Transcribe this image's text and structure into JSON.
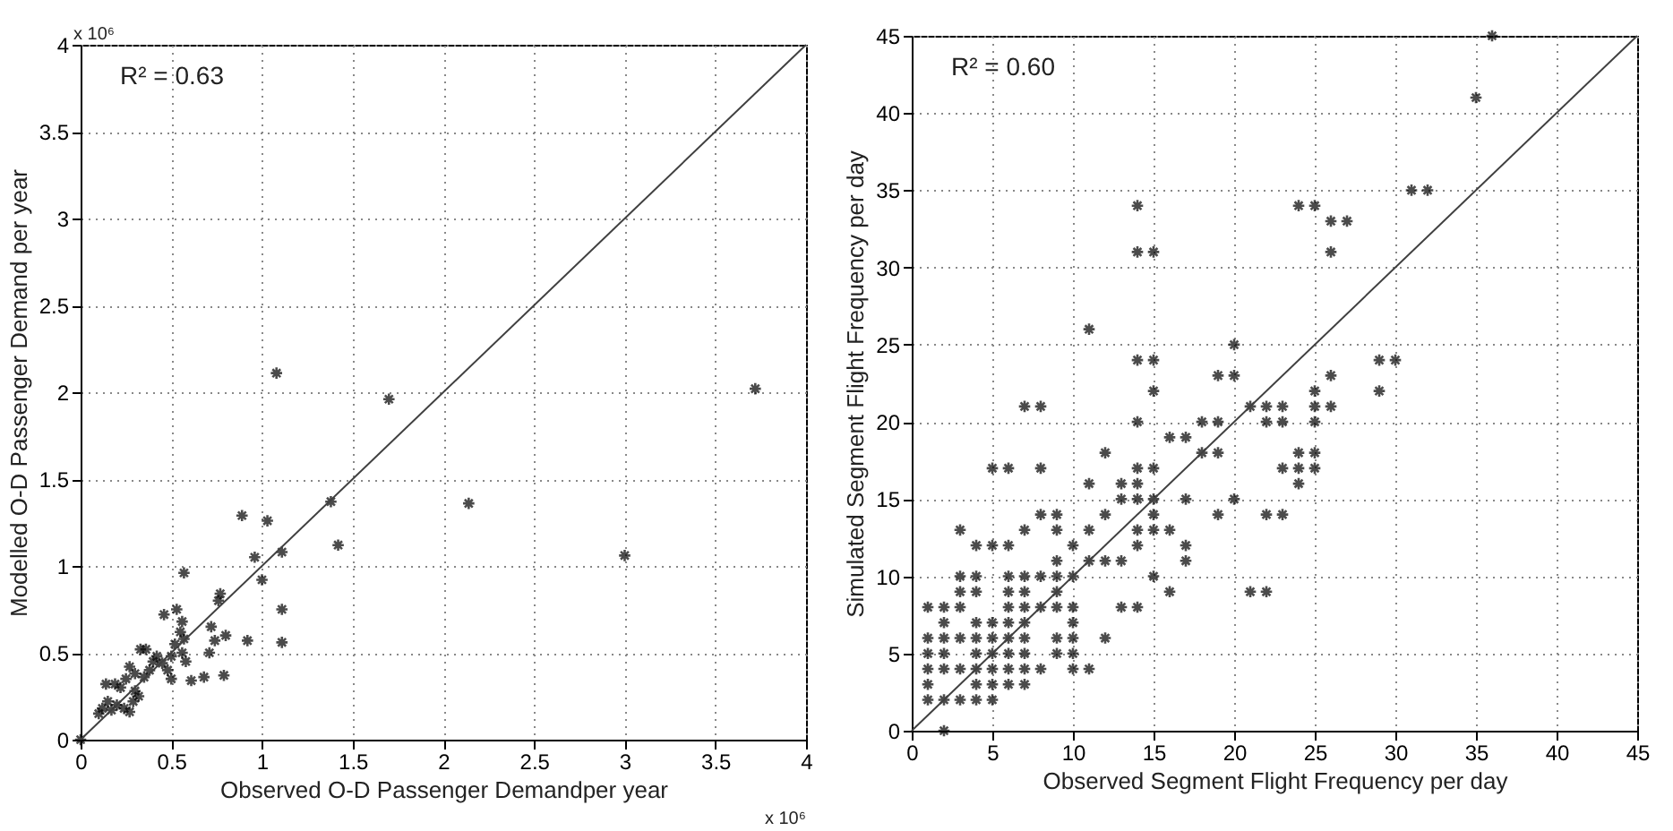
{
  "chart_data": [
    {
      "type": "scatter",
      "xlabel": "Observed O-D Passenger Demandper year",
      "ylabel": "Modelled O-D Passenger Demand per year",
      "annotations": [
        "R² = 0.63",
        "x 10⁶",
        "x 10⁶"
      ],
      "xlim": [
        0,
        4
      ],
      "ylim": [
        0,
        4
      ],
      "xticks": [
        0,
        0.5,
        1,
        1.5,
        2,
        2.5,
        3,
        3.5,
        4
      ],
      "yticks": [
        0,
        0.5,
        1,
        1.5,
        2,
        2.5,
        3,
        3.5,
        4
      ],
      "grid": true,
      "series": [
        {
          "marker": "cross",
          "color": "#000000",
          "x": [
            1.08,
            1.7,
            3.72,
            2.14,
            3.0,
            1.38,
            1.42,
            0.89,
            1.03,
            0.96,
            1.11,
            1.0,
            0.57,
            1.11,
            1.11,
            0.92,
            0.79,
            0.61,
            0.68,
            0.71,
            0.74,
            0.8,
            0.77,
            0.76,
            0.72,
            0.56,
            0.55,
            0.53,
            0.46,
            0.52,
            0.5,
            0.56,
            0.58,
            0.48,
            0.5,
            0.45,
            0.4,
            0.36,
            0.33,
            0.38,
            0.35,
            0.3,
            0.27,
            0.25,
            0.22,
            0.19,
            0.14,
            0.15,
            0.12,
            0.1,
            0.17,
            0.2,
            0.24,
            0.27,
            0.3,
            0.32,
            0.29,
            0.0,
            0.42,
            0.57
          ],
          "values": [
            2.11,
            1.96,
            2.02,
            1.36,
            1.06,
            1.37,
            1.12,
            1.29,
            1.26,
            1.05,
            1.08,
            0.92,
            0.96,
            0.75,
            0.56,
            0.57,
            0.37,
            0.34,
            0.36,
            0.5,
            0.57,
            0.6,
            0.84,
            0.8,
            0.65,
            0.68,
            0.62,
            0.75,
            0.72,
            0.55,
            0.48,
            0.5,
            0.45,
            0.4,
            0.35,
            0.44,
            0.45,
            0.52,
            0.52,
            0.4,
            0.36,
            0.38,
            0.42,
            0.35,
            0.3,
            0.32,
            0.32,
            0.22,
            0.18,
            0.15,
            0.17,
            0.2,
            0.18,
            0.16,
            0.28,
            0.25,
            0.22,
            0.0,
            0.48,
            0.58
          ]
        },
        {
          "type": "line",
          "marker": "none",
          "color": "#404040",
          "line_style": "solid",
          "x": [
            0,
            4
          ],
          "values": [
            0,
            4
          ]
        }
      ]
    },
    {
      "type": "scatter",
      "xlabel": "Observed Segment Flight Frequency per day",
      "ylabel": "Simulated Segment Flight Frequency per day",
      "annotations": [
        "R² = 0.60"
      ],
      "xlim": [
        0,
        45
      ],
      "ylim": [
        0,
        45
      ],
      "xticks": [
        0,
        5,
        10,
        15,
        20,
        25,
        30,
        35,
        40,
        45
      ],
      "yticks": [
        0,
        5,
        10,
        15,
        20,
        25,
        30,
        35,
        40,
        45
      ],
      "grid": true,
      "series": [
        {
          "marker": "cross",
          "color": "#000000",
          "x": [
            36,
            35,
            31,
            32,
            14,
            24,
            25,
            26,
            27,
            14,
            15,
            26,
            11,
            20,
            14,
            15,
            29,
            30,
            19,
            20,
            26,
            15,
            25,
            29,
            7,
            8,
            21,
            22,
            23,
            25,
            26,
            14,
            18,
            19,
            22,
            23,
            25,
            16,
            17,
            12,
            18,
            19,
            24,
            25,
            5,
            6,
            8,
            14,
            15,
            23,
            24,
            25,
            11,
            13,
            14,
            24,
            13,
            14,
            15,
            17,
            20,
            8,
            9,
            12,
            15,
            19,
            22,
            23,
            3,
            7,
            9,
            11,
            14,
            15,
            16,
            4,
            5,
            6,
            10,
            14,
            17,
            9,
            11,
            12,
            13,
            17,
            3,
            4,
            6,
            7,
            8,
            9,
            10,
            15,
            3,
            4,
            6,
            7,
            9,
            16,
            21,
            22,
            1,
            2,
            3,
            6,
            7,
            8,
            9,
            10,
            13,
            14,
            2,
            4,
            5,
            6,
            7,
            10,
            1,
            2,
            3,
            4,
            5,
            6,
            7,
            9,
            10,
            12,
            1,
            2,
            4,
            5,
            6,
            7,
            9,
            10,
            1,
            2,
            3,
            4,
            5,
            6,
            7,
            8,
            10,
            11,
            1,
            4,
            5,
            6,
            7,
            1,
            2,
            3,
            4,
            5,
            2
          ],
          "values": [
            45,
            41,
            35,
            35,
            34,
            34,
            34,
            33,
            33,
            31,
            31,
            31,
            26,
            25,
            24,
            24,
            24,
            24,
            23,
            23,
            23,
            22,
            22,
            22,
            21,
            21,
            21,
            21,
            21,
            21,
            21,
            20,
            20,
            20,
            20,
            20,
            20,
            19,
            19,
            18,
            18,
            18,
            18,
            18,
            17,
            17,
            17,
            17,
            17,
            17,
            17,
            17,
            16,
            16,
            16,
            16,
            15,
            15,
            15,
            15,
            15,
            14,
            14,
            14,
            14,
            14,
            14,
            14,
            13,
            13,
            13,
            13,
            13,
            13,
            13,
            12,
            12,
            12,
            12,
            12,
            12,
            11,
            11,
            11,
            11,
            11,
            10,
            10,
            10,
            10,
            10,
            10,
            10,
            10,
            9,
            9,
            9,
            9,
            9,
            9,
            9,
            9,
            8,
            8,
            8,
            8,
            8,
            8,
            8,
            8,
            8,
            8,
            7,
            7,
            7,
            7,
            7,
            7,
            6,
            6,
            6,
            6,
            6,
            6,
            6,
            6,
            6,
            6,
            5,
            5,
            5,
            5,
            5,
            5,
            5,
            5,
            4,
            4,
            4,
            4,
            4,
            4,
            4,
            4,
            4,
            4,
            3,
            3,
            3,
            3,
            3,
            2,
            2,
            2,
            2,
            2,
            0
          ]
        },
        {
          "type": "line",
          "marker": "none",
          "color": "#404040",
          "line_style": "solid",
          "x": [
            0,
            45
          ],
          "values": [
            0,
            45
          ]
        }
      ]
    }
  ]
}
